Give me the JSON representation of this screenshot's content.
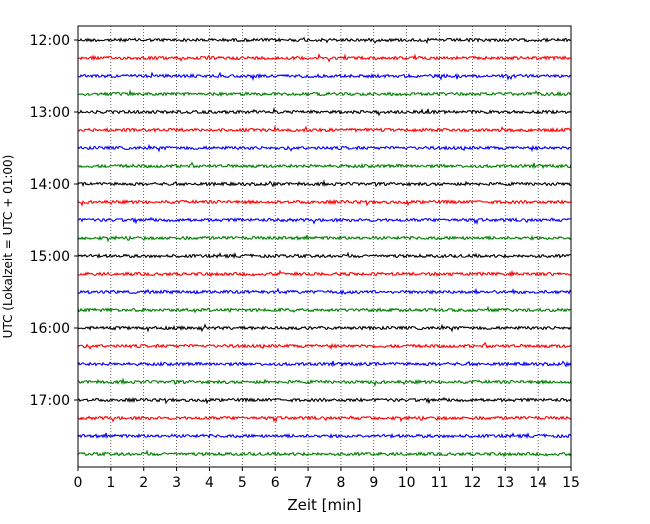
{
  "chart_data": {
    "type": "line",
    "title": "",
    "xlabel": "Zeit  [min]",
    "ylabel": "UTC (Lokalzeit = UTC + 01:00)",
    "xlim": [
      0,
      15
    ],
    "x_ticks": [
      0,
      1,
      2,
      3,
      4,
      5,
      6,
      7,
      8,
      9,
      10,
      11,
      12,
      13,
      14,
      15
    ],
    "x_tick_labels": [
      "0",
      "1",
      "2",
      "3",
      "4",
      "5",
      "6",
      "7",
      "8",
      "9",
      "10",
      "11",
      "12",
      "13",
      "14",
      "15"
    ],
    "y_ticks": [
      "12:00",
      "13:00",
      "14:00",
      "15:00",
      "16:00",
      "17:00"
    ],
    "grid": "vertical dotted at each minute",
    "trace_interval_min": 15,
    "traces": [
      {
        "start": "12:00",
        "color": "#000000"
      },
      {
        "start": "12:15",
        "color": "#ff0000"
      },
      {
        "start": "12:30",
        "color": "#0000ff"
      },
      {
        "start": "12:45",
        "color": "#008000"
      },
      {
        "start": "13:00",
        "color": "#000000"
      },
      {
        "start": "13:15",
        "color": "#ff0000"
      },
      {
        "start": "13:30",
        "color": "#0000ff"
      },
      {
        "start": "13:45",
        "color": "#008000"
      },
      {
        "start": "14:00",
        "color": "#000000"
      },
      {
        "start": "14:15",
        "color": "#ff0000"
      },
      {
        "start": "14:30",
        "color": "#0000ff"
      },
      {
        "start": "14:45",
        "color": "#008000"
      },
      {
        "start": "15:00",
        "color": "#000000"
      },
      {
        "start": "15:15",
        "color": "#ff0000"
      },
      {
        "start": "15:30",
        "color": "#0000ff"
      },
      {
        "start": "15:45",
        "color": "#008000"
      },
      {
        "start": "16:00",
        "color": "#000000"
      },
      {
        "start": "16:15",
        "color": "#ff0000"
      },
      {
        "start": "16:30",
        "color": "#0000ff"
      },
      {
        "start": "16:45",
        "color": "#008000"
      },
      {
        "start": "17:00",
        "color": "#000000"
      },
      {
        "start": "17:15",
        "color": "#ff0000"
      },
      {
        "start": "17:30",
        "color": "#0000ff"
      },
      {
        "start": "17:45",
        "color": "#008000"
      }
    ]
  }
}
